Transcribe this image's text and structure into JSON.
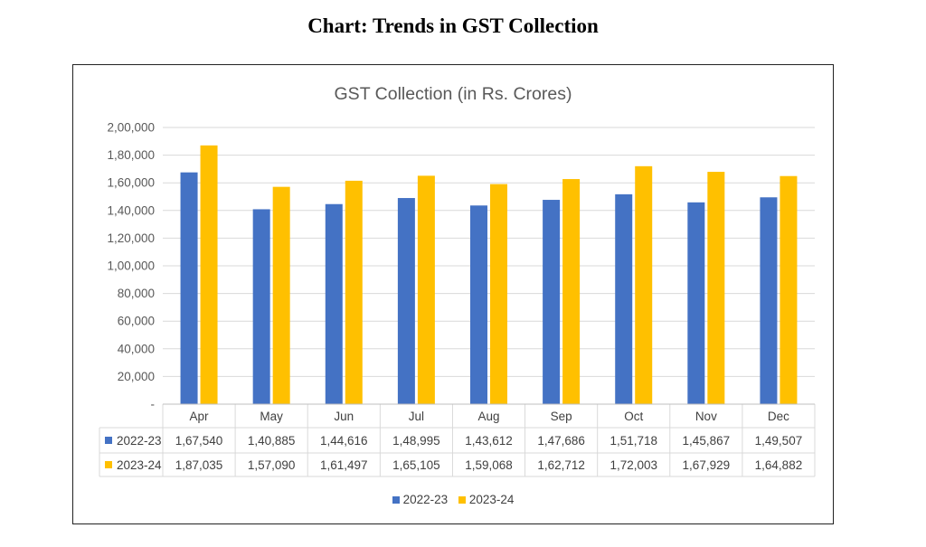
{
  "page": {
    "heading": "Chart: Trends in GST Collection"
  },
  "colors": {
    "series_2022_23": "#4472C4",
    "series_2023_24": "#FFC000",
    "grid": "#D9D9D9",
    "axis_text": "#595959",
    "title_text": "#595959"
  },
  "chart_data": {
    "type": "bar",
    "title": "GST Collection (in Rs. Crores)",
    "xlabel": "",
    "ylabel": "",
    "categories": [
      "Apr",
      "May",
      "Jun",
      "Jul",
      "Aug",
      "Sep",
      "Oct",
      "Nov",
      "Dec"
    ],
    "series": [
      {
        "name": "2022-23",
        "values": [
          167540,
          140885,
          144616,
          148995,
          143612,
          147686,
          151718,
          145867,
          149507
        ],
        "labels": [
          "1,67,540",
          "1,40,885",
          "1,44,616",
          "1,48,995",
          "1,43,612",
          "1,47,686",
          "1,51,718",
          "1,45,867",
          "1,49,507"
        ]
      },
      {
        "name": "2023-24",
        "values": [
          187035,
          157090,
          161497,
          165105,
          159068,
          162712,
          172003,
          167929,
          164882
        ],
        "labels": [
          "1,87,035",
          "1,57,090",
          "1,61,497",
          "1,65,105",
          "1,59,068",
          "1,62,712",
          "1,72,003",
          "1,67,929",
          "1,64,882"
        ]
      }
    ],
    "ylim": [
      0,
      200000
    ],
    "y_ticks": [
      0,
      20000,
      40000,
      60000,
      80000,
      100000,
      120000,
      140000,
      160000,
      180000,
      200000
    ],
    "y_tick_labels": [
      "-",
      "20,000",
      "40,000",
      "60,000",
      "80,000",
      "1,00,000",
      "1,20,000",
      "1,40,000",
      "1,60,000",
      "1,80,000",
      "2,00,000"
    ],
    "grid": true,
    "data_table": true,
    "legend_position": "bottom"
  }
}
